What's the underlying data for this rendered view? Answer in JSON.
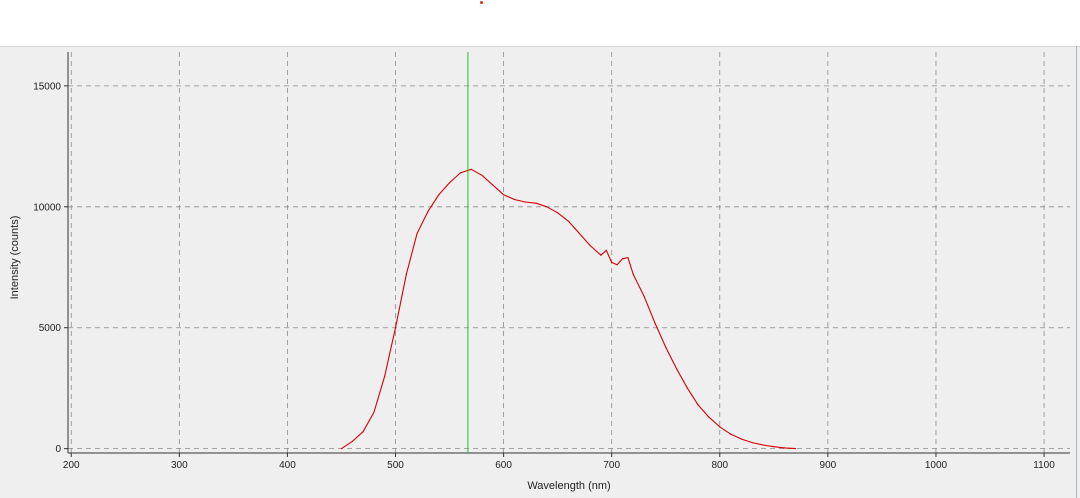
{
  "colors": {
    "series": "#d60000",
    "marker_line": "#22c522",
    "grid": "#8a8a8a",
    "plot_background": "#efefef",
    "axis": "#333333"
  },
  "chart_data": {
    "type": "line",
    "title": "",
    "xlabel": "Wavelength (nm)",
    "ylabel": "Intensity (counts)",
    "xlim": [
      197,
      1124
    ],
    "ylim": [
      -180,
      16400
    ],
    "xticks": [
      200,
      300,
      400,
      500,
      600,
      700,
      800,
      900,
      1000,
      1100
    ],
    "yticks": [
      0,
      5000,
      10000,
      15000
    ],
    "grid": true,
    "marker_x": 567,
    "series": [
      {
        "x": [
          450,
          460,
          470,
          480,
          490,
          500,
          510,
          520,
          530,
          540,
          550,
          560,
          570,
          580,
          590,
          600,
          610,
          620,
          630,
          640,
          650,
          660,
          670,
          680,
          690,
          695,
          700,
          705,
          710,
          715,
          720,
          730,
          740,
          750,
          760,
          770,
          780,
          790,
          800,
          810,
          820,
          830,
          840,
          850,
          860,
          870
        ],
        "y": [
          0,
          300,
          700,
          1500,
          3000,
          5000,
          7200,
          8900,
          9800,
          10500,
          11000,
          11400,
          11550,
          11300,
          10900,
          10500,
          10300,
          10200,
          10150,
          10000,
          9750,
          9400,
          8900,
          8400,
          8000,
          8200,
          7700,
          7600,
          7850,
          7900,
          7200,
          6300,
          5200,
          4200,
          3300,
          2500,
          1800,
          1300,
          900,
          600,
          400,
          250,
          150,
          80,
          30,
          0
        ]
      }
    ]
  }
}
